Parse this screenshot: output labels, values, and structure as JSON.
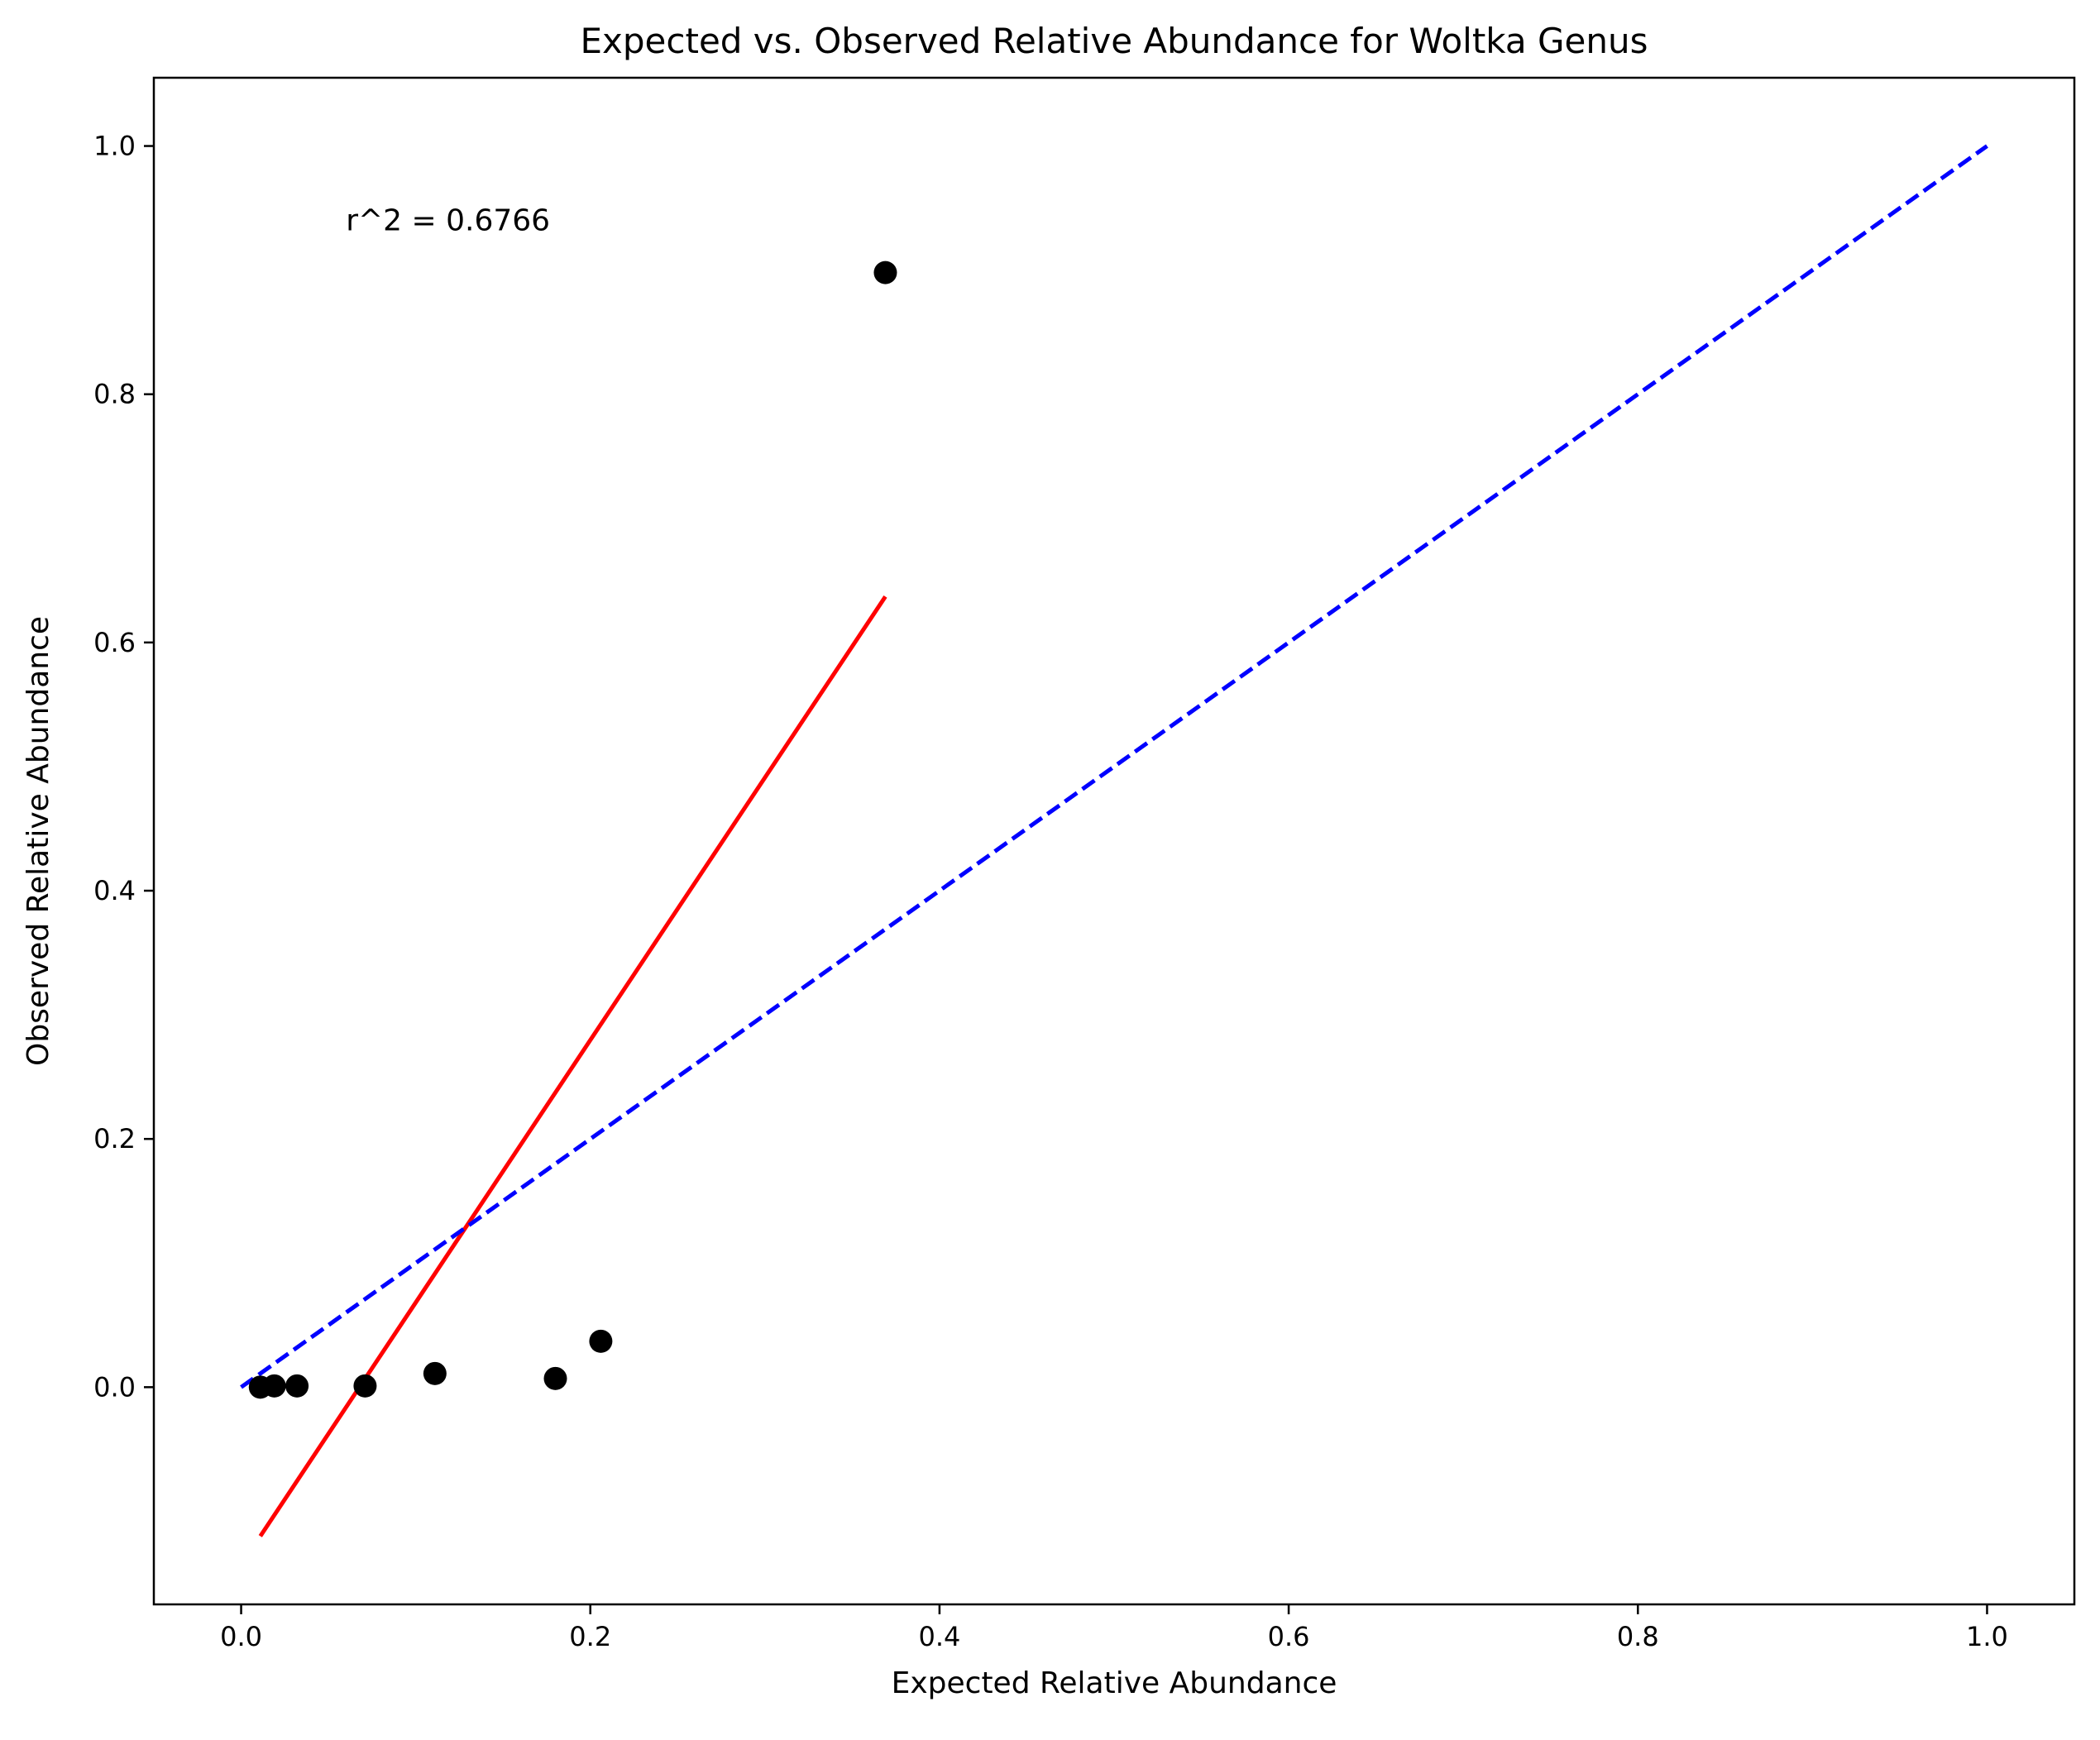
{
  "chart_data": {
    "type": "scatter",
    "title": "Expected vs. Observed Relative Abundance for Woltka Genus",
    "xlabel": "Expected Relative Abundance",
    "ylabel": "Observed Relative Abundance",
    "xlim": [
      -0.05,
      1.05
    ],
    "ylim": [
      -0.175,
      1.055
    ],
    "xticks": [
      0.0,
      0.2,
      0.4,
      0.6,
      0.8,
      1.0
    ],
    "xtick_labels": [
      "0.0",
      "0.2",
      "0.4",
      "0.6",
      "0.8",
      "1.0"
    ],
    "yticks": [
      0.0,
      0.2,
      0.4,
      0.6,
      0.8,
      1.0
    ],
    "ytick_labels": [
      "0.0",
      "0.2",
      "0.4",
      "0.6",
      "0.8",
      "1.0"
    ],
    "grid": false,
    "points": [
      {
        "x": 0.011,
        "y": 0.0
      },
      {
        "x": 0.019,
        "y": 0.001
      },
      {
        "x": 0.032,
        "y": 0.001
      },
      {
        "x": 0.071,
        "y": 0.001
      },
      {
        "x": 0.111,
        "y": 0.011
      },
      {
        "x": 0.18,
        "y": 0.007
      },
      {
        "x": 0.206,
        "y": 0.037
      },
      {
        "x": 0.369,
        "y": 0.898
      }
    ],
    "point_color": "#000000",
    "lines": [
      {
        "role": "regression-fit",
        "x": [
          0.011,
          0.369
        ],
        "y": [
          -0.12,
          0.637
        ],
        "color": "#ff0000",
        "style": "solid"
      },
      {
        "role": "identity",
        "x": [
          0.0,
          1.0
        ],
        "y": [
          0.0,
          1.0
        ],
        "color": "#0000ff",
        "style": "dashed"
      }
    ],
    "annotations": [
      {
        "text": "r^2 = 0.6766",
        "x": 0.06,
        "y": 0.94
      }
    ]
  }
}
